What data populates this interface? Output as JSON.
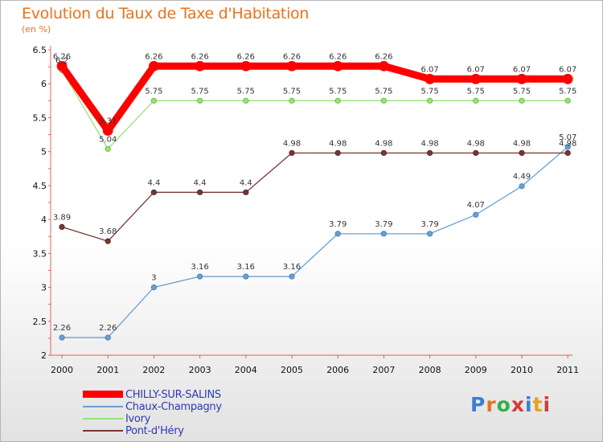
{
  "header": {
    "title": "Evolution du Taux de Taxe d'Habitation",
    "unit": "(en %)"
  },
  "logo": {
    "text": "Proxiti"
  },
  "chart_data": {
    "type": "line",
    "title": "Evolution du Taux de Taxe d'Habitation",
    "ylabel": "(en %)",
    "xlabel": "",
    "ylim": [
      2,
      6.5
    ],
    "ytick_values": [
      2,
      2.5,
      3,
      3.5,
      4,
      4.5,
      5,
      5.5,
      6,
      6.5
    ],
    "ytick_labels": [
      "2",
      "2.5",
      "3",
      "3.5",
      "4",
      "4.5",
      "5",
      "5.5",
      "6",
      "6.5"
    ],
    "categories": [
      "2000",
      "2001",
      "2002",
      "2003",
      "2004",
      "2005",
      "2006",
      "2007",
      "2008",
      "2009",
      "2010",
      "2011"
    ],
    "grid": false,
    "legend_position": "bottom-left",
    "series": [
      {
        "name": "CHILLY-SUR-SALINS",
        "color": "#ff0000",
        "values": [
          6.26,
          5.31,
          6.26,
          6.26,
          6.26,
          6.26,
          6.26,
          6.26,
          6.07,
          6.07,
          6.07,
          6.07
        ],
        "labels": [
          "6.26",
          "5.31",
          "6.26",
          "6.26",
          "6.26",
          "6.26",
          "6.26",
          "6.26",
          "6.07",
          "6.07",
          "6.07",
          "6.07"
        ]
      },
      {
        "name": "Chaux-Champagny",
        "color": "#6c9fd0",
        "values": [
          2.26,
          2.26,
          3,
          3.16,
          3.16,
          3.16,
          3.79,
          3.79,
          3.79,
          4.07,
          4.49,
          5.07
        ],
        "labels": [
          "2.26",
          "2.26",
          "3",
          "3.16",
          "3.16",
          "3.16",
          "3.79",
          "3.79",
          "3.79",
          "4.07",
          "4.49",
          "5.07"
        ]
      },
      {
        "name": "Ivory",
        "color": "#9be07a",
        "values": [
          6.2,
          5.04,
          5.75,
          5.75,
          5.75,
          5.75,
          5.75,
          5.75,
          5.75,
          5.75,
          5.75,
          5.75
        ],
        "labels": [
          "6.2",
          "5.04",
          "5.75",
          "5.75",
          "5.75",
          "5.75",
          "5.75",
          "5.75",
          "5.75",
          "5.75",
          "5.75",
          "5.75"
        ]
      },
      {
        "name": "Pont-d'Héry",
        "color": "#7a3636",
        "values": [
          3.89,
          3.68,
          4.4,
          4.4,
          4.4,
          4.98,
          4.98,
          4.98,
          4.98,
          4.98,
          4.98,
          4.98
        ],
        "labels": [
          "3.89",
          "3.68",
          "4.4",
          "4.4",
          "4.4",
          "4.98",
          "4.98",
          "4.98",
          "4.98",
          "4.98",
          "4.98",
          "4.98"
        ]
      }
    ]
  }
}
